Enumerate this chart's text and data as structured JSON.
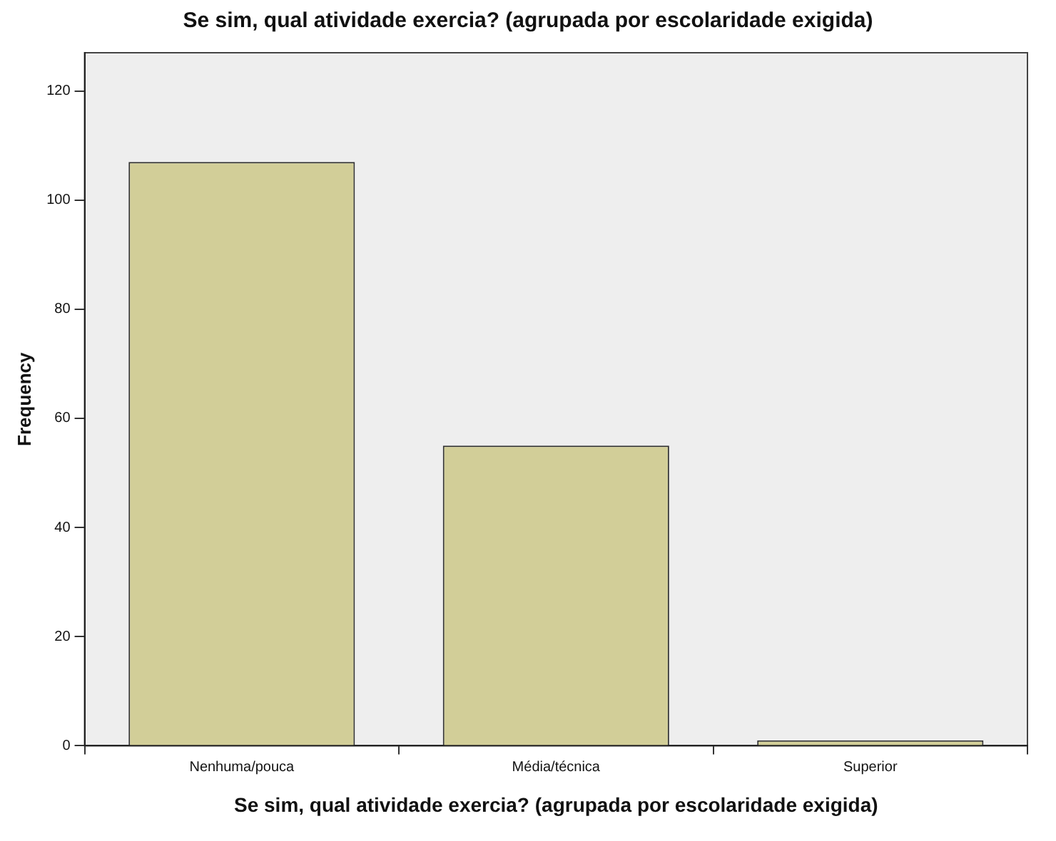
{
  "chart_data": {
    "type": "bar",
    "title": "Se sim, qual atividade exercia? (agrupada por escolaridade exigida)",
    "xlabel": "Se sim, qual atividade exercia? (agrupada por escolaridade exigida)",
    "ylabel": "Frequency",
    "categories": [
      "Nenhuma/pouca",
      "Média/técnica",
      "Superior"
    ],
    "values": [
      107,
      55,
      1
    ],
    "color": "#d2ce98",
    "ylim": [
      0,
      127
    ],
    "yticks": [
      0,
      20,
      40,
      60,
      80,
      100,
      120
    ],
    "grid": false,
    "legend": false
  }
}
